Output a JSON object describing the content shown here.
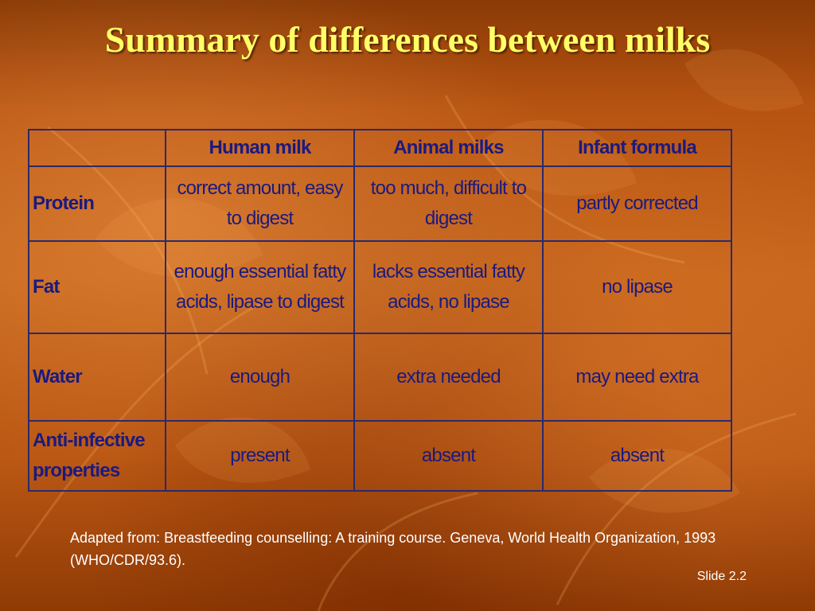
{
  "slide": {
    "title": "Summary of differences between milks",
    "table": {
      "headers": [
        "",
        "Human milk",
        "Animal milks",
        "Infant formula"
      ],
      "rows": [
        {
          "label": "Protein",
          "cells": [
            "correct amount, easy to digest",
            "too much, difficult to digest",
            "partly corrected"
          ]
        },
        {
          "label": "Fat",
          "cells": [
            "enough essential fatty acids, lipase to digest",
            "lacks essential fatty acids, no lipase",
            "no lipase"
          ]
        },
        {
          "label": "Water",
          "cells": [
            "enough",
            "extra needed",
            "may need extra"
          ]
        },
        {
          "label": "Anti-infective properties",
          "cells": [
            "present",
            "absent",
            "absent"
          ]
        }
      ]
    },
    "source": "Adapted from: Breastfeeding counselling: A training course. Geneva, World Health Organization, 1993 (WHO/CDR/93.6).",
    "slide_number": "Slide 2.2"
  },
  "colors": {
    "background": "#c4631a",
    "title": "#ffff66",
    "table_text": "#1a1a80",
    "table_border": "#2a2a6a",
    "footer_text": "#ffffff"
  }
}
